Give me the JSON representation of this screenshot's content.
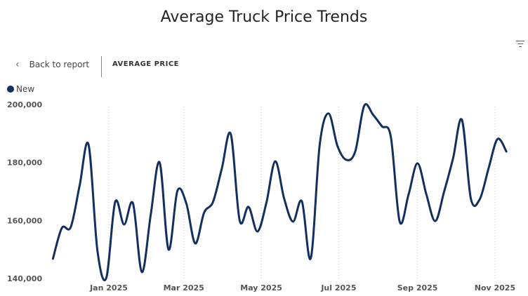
{
  "header": {
    "back_label": "Back to report",
    "breadcrumb": "AVERAGE PRICE",
    "back_icon": "chevron-left-icon",
    "filter_icon": "filter-icon"
  },
  "colors": {
    "series": "#12305f",
    "grid": "#c8c8c8"
  },
  "chart_data": {
    "type": "line",
    "title": "Average Truck Price Trends",
    "xlabel": "",
    "ylabel": "",
    "legend_position": "top-left",
    "grid": "vertical dotted",
    "ylim": [
      140000,
      200000
    ],
    "yticks": [
      140000,
      160000,
      180000,
      200000
    ],
    "ytick_labels": [
      "140,000",
      "160,000",
      "180,000",
      "200,000"
    ],
    "xticks": [
      "2025-01-01",
      "2025-03-01",
      "2025-05-01",
      "2025-07-01",
      "2025-09-01",
      "2025-11-01"
    ],
    "xtick_labels": [
      "Jan 2025",
      "Mar 2025",
      "May 2025",
      "Jul 2025",
      "Sep 2025",
      "Nov 2025"
    ],
    "x": [
      "2024-11-18",
      "2024-11-25",
      "2024-12-02",
      "2024-12-09",
      "2024-12-16",
      "2024-12-23",
      "2024-12-30",
      "2025-01-06",
      "2025-01-13",
      "2025-01-20",
      "2025-01-27",
      "2025-02-03",
      "2025-02-10",
      "2025-02-17",
      "2025-02-24",
      "2025-03-03",
      "2025-03-10",
      "2025-03-17",
      "2025-03-24",
      "2025-03-31",
      "2025-04-07",
      "2025-04-14",
      "2025-04-21",
      "2025-04-28",
      "2025-05-05",
      "2025-05-12",
      "2025-05-19",
      "2025-05-26",
      "2025-06-02",
      "2025-06-09",
      "2025-06-16",
      "2025-06-23",
      "2025-06-30",
      "2025-07-07",
      "2025-07-14",
      "2025-07-21",
      "2025-07-28",
      "2025-08-04",
      "2025-08-11",
      "2025-08-18",
      "2025-08-25",
      "2025-09-01",
      "2025-09-08",
      "2025-09-15",
      "2025-09-22",
      "2025-09-29",
      "2025-10-06",
      "2025-10-13",
      "2025-10-20",
      "2025-10-27",
      "2025-11-03",
      "2025-11-10"
    ],
    "series": [
      {
        "name": "New",
        "values": [
          146800,
          157400,
          157700,
          172000,
          186200,
          149700,
          140200,
          166400,
          158600,
          165900,
          142200,
          162000,
          180000,
          150000,
          170200,
          165900,
          152100,
          162700,
          166400,
          178000,
          189800,
          160000,
          164700,
          156200,
          166000,
          180400,
          167600,
          159600,
          166600,
          147000,
          186000,
          196900,
          185700,
          180900,
          183800,
          199500,
          196500,
          192500,
          188900,
          159600,
          169000,
          179700,
          169000,
          159800,
          170000,
          181400,
          194700,
          167600,
          167300,
          178000,
          188100,
          183800
        ]
      }
    ]
  }
}
